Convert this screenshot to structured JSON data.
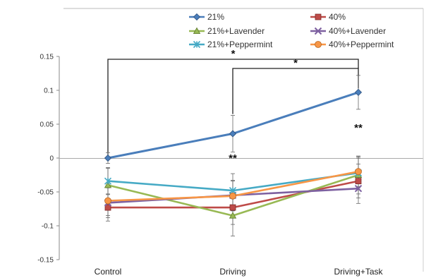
{
  "chart_data": {
    "type": "line",
    "title": "",
    "xlabel": "",
    "ylabel": "",
    "categories": [
      "Control",
      "Driving",
      "Driving+Task"
    ],
    "ylim": [
      -0.15,
      0.15
    ],
    "yticks": [
      -0.15,
      -0.1,
      -0.05,
      0,
      0.05,
      0.1,
      0.15
    ],
    "ytick_labels": [
      "-0.15",
      "-0.1",
      "-0.05",
      "0",
      "0.05",
      "0.1",
      "0.15"
    ],
    "grid": false,
    "legend_position": "top",
    "series": [
      {
        "name": "21%",
        "values": [
          0.0,
          0.036,
          0.097
        ],
        "errors": [
          0.008,
          0.027,
          0.025
        ],
        "color": "#4A7EBB",
        "marker": "diamond"
      },
      {
        "name": "40%",
        "values": [
          -0.073,
          -0.073,
          -0.034
        ],
        "errors": [
          0.02,
          0.025,
          0.025
        ],
        "color": "#BE4B48",
        "marker": "square"
      },
      {
        "name": "21%+Lavender",
        "values": [
          -0.04,
          -0.085,
          -0.025
        ],
        "errors": [
          0.025,
          0.03,
          0.028
        ],
        "color": "#98B954",
        "marker": "triangle"
      },
      {
        "name": "40%+Lavender",
        "values": [
          -0.066,
          -0.055,
          -0.045
        ],
        "errors": [
          0.022,
          0.022,
          0.022
        ],
        "color": "#7D60A0",
        "marker": "x"
      },
      {
        "name": "21%+Peppermint",
        "values": [
          -0.034,
          -0.048,
          -0.022
        ],
        "errors": [
          0.02,
          0.025,
          0.022
        ],
        "color": "#46AAC5",
        "marker": "star"
      },
      {
        "name": "40%+Peppermint",
        "values": [
          -0.063,
          -0.056,
          -0.02
        ],
        "errors": [
          0.022,
          0.022,
          0.022
        ],
        "color": "#F79646",
        "marker": "circle"
      }
    ],
    "annotations": [
      {
        "text": "*",
        "type": "bracket",
        "from": "Control",
        "to": "Driving+Task"
      },
      {
        "text": "*",
        "type": "bracket",
        "from": "Driving",
        "to": "Driving+Task"
      },
      {
        "text": "**",
        "category": "Driving",
        "y": 0.0
      },
      {
        "text": "**",
        "category": "Driving+Task",
        "y": 0.045
      }
    ]
  }
}
